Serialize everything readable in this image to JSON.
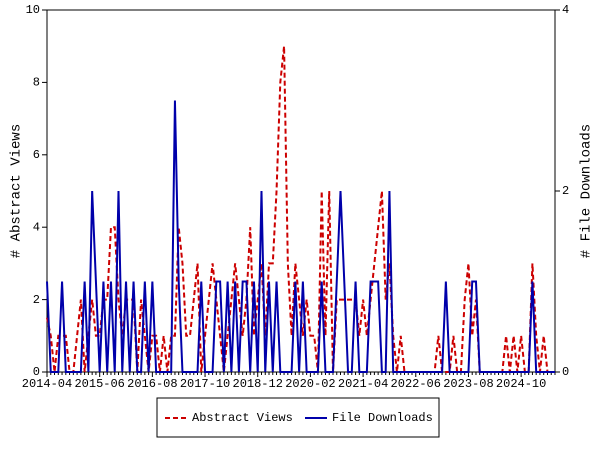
{
  "chart_data": {
    "type": "line",
    "categories": [
      "2014-04",
      null,
      null,
      null,
      null,
      null,
      null,
      null,
      null,
      null,
      null,
      null,
      null,
      null,
      "2015-06",
      null,
      null,
      null,
      null,
      null,
      null,
      null,
      null,
      null,
      null,
      null,
      null,
      null,
      "2016-08",
      null,
      null,
      null,
      null,
      null,
      null,
      null,
      null,
      null,
      null,
      null,
      null,
      null,
      "2017-10",
      null,
      null,
      null,
      null,
      null,
      null,
      null,
      null,
      null,
      null,
      null,
      null,
      null,
      "2018-12",
      null,
      null,
      null,
      null,
      null,
      null,
      null,
      null,
      null,
      null,
      null,
      null,
      null,
      "2020-02",
      null,
      null,
      null,
      null,
      null,
      null,
      null,
      null,
      null,
      null,
      null,
      null,
      null,
      "2021-04",
      null,
      null,
      null,
      null,
      null,
      null,
      null,
      null,
      null,
      null,
      null,
      null,
      null,
      "2022-06",
      null,
      null,
      null,
      null,
      null,
      null,
      null,
      null,
      null,
      null,
      null,
      null,
      null,
      "2023-08",
      null,
      null,
      null,
      null,
      null,
      null,
      null,
      null,
      null,
      null,
      null,
      null,
      null,
      "2024-10",
      null,
      null,
      null,
      null,
      null,
      null,
      null,
      null,
      null
    ],
    "ylabel": "# Abstract Views",
    "y2label": "# File Downloads",
    "ylim": [
      0,
      10
    ],
    "yticks": [
      0,
      2,
      4,
      6,
      8,
      10
    ],
    "y2lim": [
      0,
      4
    ],
    "y2ticks": [
      0,
      2,
      4
    ],
    "series": [
      {
        "name": "Abstract Views",
        "color": "#cc0000",
        "dashed": true,
        "values": [
          1.5,
          1,
          0,
          1,
          1,
          1,
          0,
          0,
          1,
          2,
          0,
          1,
          2,
          1,
          1,
          2,
          2,
          4,
          4,
          2,
          1,
          2,
          2,
          2,
          0,
          2,
          1,
          0,
          1,
          1,
          0,
          1,
          0,
          1,
          1,
          4,
          3,
          1,
          1,
          2,
          3,
          0,
          1,
          2,
          3,
          2,
          1,
          0,
          1,
          2,
          3,
          2,
          1,
          2,
          4,
          1,
          2,
          3,
          1,
          3,
          3,
          5,
          8,
          9,
          3,
          1,
          3,
          2,
          1,
          2,
          1,
          1,
          0,
          5,
          1,
          5,
          0,
          2,
          2,
          2,
          2,
          2,
          2,
          1,
          2,
          1,
          2,
          3,
          4,
          5,
          2,
          3,
          1,
          0,
          1,
          0,
          0,
          0,
          0,
          0,
          0,
          0,
          0,
          0,
          1,
          0,
          0,
          0,
          1,
          0,
          0,
          2,
          3,
          1,
          2,
          0,
          0,
          0,
          0,
          0,
          0,
          0,
          1,
          0,
          1,
          0,
          1,
          0,
          0,
          3,
          1,
          0,
          1,
          0,
          0,
          0
        ]
      },
      {
        "name": "File Downloads",
        "color": "#0000aa",
        "axis": "y2",
        "values": [
          1,
          0,
          0,
          0,
          1,
          0,
          0,
          0,
          0,
          0,
          1,
          0,
          2,
          1,
          0,
          1,
          0,
          1,
          0,
          2,
          0,
          1,
          0,
          1,
          0,
          0,
          1,
          0,
          1,
          0,
          0,
          0,
          0,
          0,
          3,
          1,
          0,
          0,
          0,
          0,
          0,
          1,
          0,
          0,
          0,
          1,
          1,
          0,
          1,
          0,
          1,
          0,
          1,
          1,
          0,
          1,
          0,
          2,
          0,
          1,
          0,
          1,
          0,
          0,
          0,
          0,
          1,
          0,
          1,
          0,
          0,
          0,
          0,
          1,
          0,
          0,
          0,
          1,
          2,
          1,
          0,
          0,
          1,
          0,
          0,
          0,
          1,
          1,
          1,
          0,
          0,
          2,
          0,
          0,
          0,
          0,
          0,
          0,
          0,
          0,
          0,
          0,
          0,
          0,
          0,
          0,
          1,
          0,
          0,
          0,
          0,
          0,
          0,
          1,
          1,
          0,
          0,
          0,
          0,
          0,
          0,
          0,
          0,
          0,
          0,
          0,
          0,
          0,
          0,
          1,
          0,
          0,
          0,
          0,
          0,
          0
        ]
      }
    ]
  }
}
